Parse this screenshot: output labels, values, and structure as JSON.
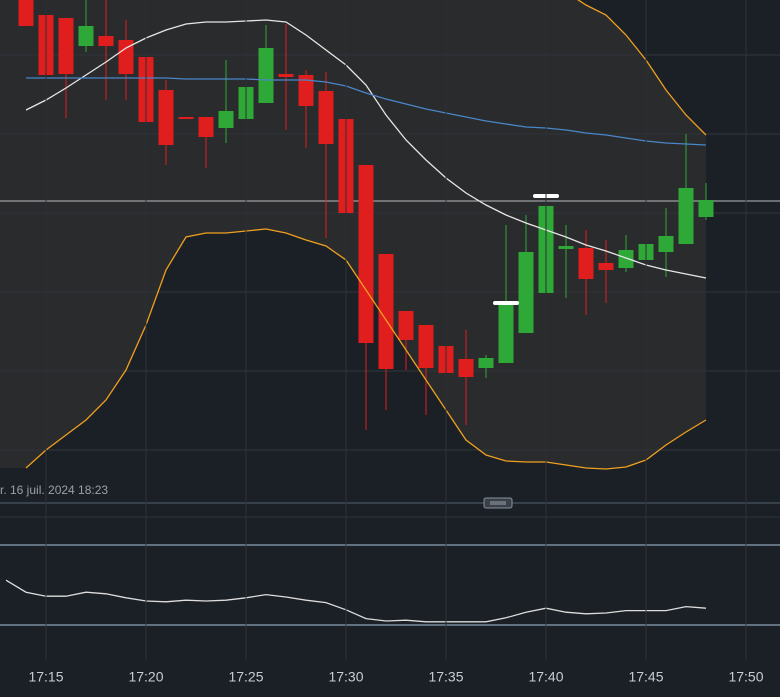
{
  "chart_data": [
    {
      "type": "candlestick",
      "x": [
        "17:14",
        "17:15",
        "17:16",
        "17:17",
        "17:18",
        "17:19",
        "17:20",
        "17:21",
        "17:22",
        "17:23",
        "17:24",
        "17:25",
        "17:26",
        "17:27",
        "17:28",
        "17:29",
        "17:30",
        "17:31",
        "17:32",
        "17:33",
        "17:34",
        "17:35",
        "17:36",
        "17:37",
        "17:38",
        "17:39",
        "17:40",
        "17:41",
        "17:42",
        "17:43",
        "17:44",
        "17:45",
        "17:46",
        "17:47",
        "17:48"
      ],
      "open": [
        505,
        485,
        482,
        454,
        464,
        460,
        443,
        410,
        383,
        383,
        372,
        381,
        397,
        426,
        425,
        409,
        381,
        335,
        246,
        189,
        175,
        154,
        141,
        132,
        137,
        167,
        207,
        251,
        252,
        237,
        232,
        240,
        248,
        256,
        283
      ],
      "high": [
        510,
        505,
        482,
        500,
        500,
        480,
        443,
        420,
        383,
        383,
        440,
        440,
        475,
        476,
        430,
        428,
        381,
        335,
        246,
        189,
        175,
        154,
        170,
        145,
        275,
        285,
        325,
        275,
        270,
        260,
        265,
        292,
        292,
        366,
        317
      ],
      "low": [
        474,
        400,
        382,
        448,
        400,
        400,
        305,
        335,
        381,
        332,
        357,
        372,
        397,
        370,
        352,
        262,
        240,
        70,
        90,
        130,
        85,
        100,
        75,
        122,
        137,
        167,
        207,
        202,
        185,
        197,
        228,
        228,
        223,
        256,
        280
      ],
      "close": [
        474,
        425,
        426,
        474,
        454,
        426,
        378,
        355,
        381,
        363,
        389,
        413,
        452,
        423,
        394,
        356,
        287,
        157,
        131,
        160,
        132,
        127,
        123,
        142,
        197,
        248,
        294,
        254,
        221,
        230,
        250,
        256,
        264,
        312,
        300
      ],
      "up_color": "#2ea836",
      "down_color": "#e01e1e",
      "ylim": [
        0,
        500
      ],
      "ygrid": [
        50,
        129,
        208,
        287,
        366,
        445
      ],
      "xticks": [
        "17:15",
        "17:20",
        "17:25",
        "17:30",
        "17:35",
        "17:40",
        "17:45",
        "17:50"
      ],
      "overlays": [
        {
          "color": "#f0a020",
          "values": [
            null,
            null,
            null,
            null,
            null,
            null,
            null,
            null,
            null,
            null,
            null,
            null,
            null,
            null,
            null,
            null,
            null,
            null,
            null,
            null,
            null,
            null,
            null,
            null,
            null,
            null,
            null,
            508,
            495,
            485,
            465,
            440,
            410,
            385,
            365
          ]
        },
        {
          "color": "#f0a020",
          "values": [
            32,
            50,
            65,
            80,
            100,
            130,
            175,
            230,
            263,
            267,
            267,
            269,
            271,
            267,
            260,
            254,
            240,
            210,
            180,
            150,
            120,
            90,
            60,
            45,
            39,
            38,
            38,
            35,
            32,
            31,
            33,
            40,
            55,
            68,
            80
          ]
        },
        {
          "color": "#e6e6e6",
          "values": [
            390,
            400,
            412,
            425,
            438,
            452,
            462,
            470,
            476,
            478,
            478,
            479,
            480,
            478,
            465,
            450,
            435,
            415,
            385,
            360,
            340,
            322,
            307,
            295,
            285,
            277,
            270,
            263,
            255,
            249,
            242,
            235,
            230,
            226,
            222
          ]
        },
        {
          "color": "#4a86c8",
          "values": [
            422,
            422,
            422,
            422,
            422,
            422,
            422,
            422,
            421,
            421,
            421,
            421,
            420,
            420,
            420,
            418,
            414,
            407,
            401,
            396,
            391,
            387,
            383,
            379,
            376,
            373,
            372,
            370,
            367,
            365,
            362,
            359,
            357,
            356,
            355
          ]
        }
      ],
      "markers": {
        "x": [
          "17:38",
          "17:40"
        ],
        "values": [
          197,
          304
        ],
        "color": "#ffffff"
      },
      "price_line": 299,
      "date_label": "r. 16 juil. 2024 18:23"
    },
    {
      "type": "line",
      "x": [
        "17:13",
        "17:14",
        "17:15",
        "17:16",
        "17:17",
        "17:18",
        "17:19",
        "17:20",
        "17:21",
        "17:22",
        "17:23",
        "17:24",
        "17:25",
        "17:26",
        "17:27",
        "17:28",
        "17:29",
        "17:30",
        "17:31",
        "17:32",
        "17:33",
        "17:34",
        "17:35",
        "17:36",
        "17:37",
        "17:38",
        "17:39",
        "17:40",
        "17:41",
        "17:42",
        "17:43",
        "17:44",
        "17:45",
        "17:46",
        "17:47",
        "17:48"
      ],
      "values": [
        56,
        41,
        36,
        36,
        41,
        39,
        34,
        30,
        29,
        31,
        30,
        31,
        34,
        38,
        35,
        31,
        28,
        19,
        8,
        5,
        6,
        4,
        4,
        4,
        4,
        9,
        16,
        21,
        16,
        14,
        15,
        18,
        18,
        18,
        23,
        21
      ],
      "color": "#dddddd",
      "ylim": [
        0,
        100
      ],
      "levels": [
        0,
        100
      ]
    }
  ]
}
